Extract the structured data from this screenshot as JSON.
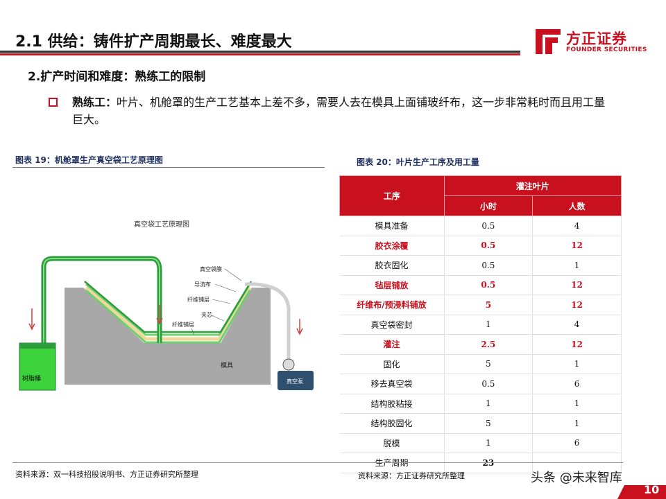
{
  "header": {
    "title": "2.1 供给：铸件扩产周期最长、难度最大",
    "logo_cn": "方正证券",
    "logo_en": "FOUNDER SECURITIES"
  },
  "subtitle": "2.扩产时间和难度：熟练工的限制",
  "bullet": {
    "term": "熟练工：",
    "text": "叶片、机舱罩的生产工艺基本上差不多，需要人去在模具上面铺玻纤布，这一步非常耗时而且用工量巨大。"
  },
  "figure19": {
    "caption": "图表 19：机舱罩生产真空袋工艺原理图",
    "diagram_title": "真空袋工艺原理图",
    "labels": {
      "vacuum_bag": "真空袋膜",
      "flow_mesh": "导流布",
      "fiber_layer_1": "纤维铺层",
      "core": "夹芯",
      "fiber_layer_2": "纤维铺层",
      "mold": "模具",
      "resin_tank": "树脂桶",
      "vacuum_pump": "真空泵"
    },
    "source": "资料来源：双一科技招股说明书、方正证券研究所整理"
  },
  "figure20": {
    "caption": "图表 20：叶片生产工序及用工量",
    "header": {
      "process": "工序",
      "group": "灌注叶片",
      "hours": "小时",
      "people": "人数"
    },
    "rows": [
      {
        "process": "模具准备",
        "hours": "0.5",
        "people": "4",
        "highlight": false
      },
      {
        "process": "胶衣涂覆",
        "hours": "0.5",
        "people": "12",
        "highlight": true
      },
      {
        "process": "胶衣固化",
        "hours": "0.5",
        "people": "1",
        "highlight": false
      },
      {
        "process": "毡层铺放",
        "hours": "0.5",
        "people": "12",
        "highlight": true
      },
      {
        "process": "纤维布/预浸料铺放",
        "hours": "5",
        "people": "12",
        "highlight": true
      },
      {
        "process": "真空袋密封",
        "hours": "1",
        "people": "4",
        "highlight": false
      },
      {
        "process": "灌注",
        "hours": "2.5",
        "people": "12",
        "highlight": true
      },
      {
        "process": "固化",
        "hours": "5",
        "people": "1",
        "highlight": false
      },
      {
        "process": "移去真空袋",
        "hours": "0.5",
        "people": "6",
        "highlight": false
      },
      {
        "process": "结构胶粘接",
        "hours": "1",
        "people": "1",
        "highlight": false
      },
      {
        "process": "结构胶固化",
        "hours": "5",
        "people": "1",
        "highlight": false
      },
      {
        "process": "脱模",
        "hours": "1",
        "people": "6",
        "highlight": false
      },
      {
        "process": "生产周期",
        "hours": "23",
        "people": "",
        "highlight": false
      }
    ],
    "source": "资料来源：方正证券研究所整理"
  },
  "watermark": "头条 @未来智库",
  "page_number": "10",
  "colors": {
    "brand_red": "#c8101e",
    "navy_caption": "#1f2f5f",
    "resin_green": "#3cd23c",
    "pipe_green": "#2e9b3e",
    "mold_gray": "#a8a8a8"
  }
}
